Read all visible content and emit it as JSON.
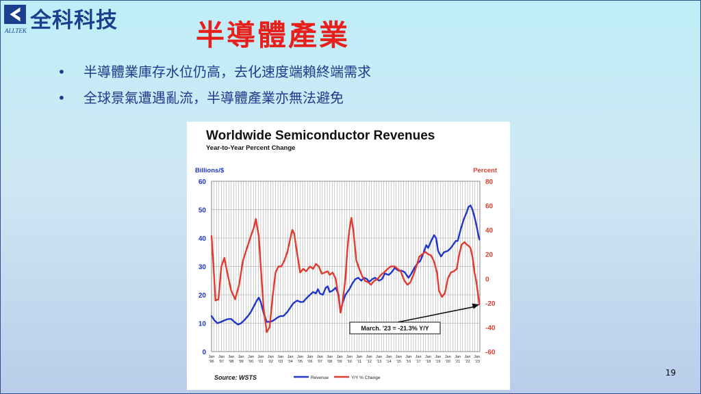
{
  "logo": {
    "name": "全科科技",
    "sub": "ALLTEK"
  },
  "slide": {
    "title": "半導體產業",
    "bullets": [
      "半導體業庫存水位仍高，去化速度端賴終端需求",
      "全球景氣遭遇亂流，半導體產業亦無法避免"
    ],
    "page_number": "19"
  },
  "colors": {
    "revenue": "#1f35c9",
    "yy": "#e03b2e",
    "title": "#e8201c",
    "text": "#1f3b8c",
    "axis_left": "#1f35c9",
    "axis_right": "#e03b2e"
  },
  "chart_data": {
    "type": "line",
    "title": "Worldwide Semiconductor Revenues",
    "subtitle": "Year-to-Year Percent Change",
    "ylabel": "Billions/$",
    "y2label": "Percent",
    "ylim": [
      0,
      60
    ],
    "y2lim": [
      -60,
      80
    ],
    "yticks": [
      "0",
      "10",
      "20",
      "30",
      "40",
      "50",
      "60"
    ],
    "y2ticks": [
      "-60",
      "-40",
      "-20",
      "0",
      "20",
      "40",
      "60",
      "80"
    ],
    "xlim": [
      1996.0,
      2023.25
    ],
    "xticks": [
      {
        "x": 1996,
        "top": "Jan",
        "bottom": "'96"
      },
      {
        "x": 1997,
        "top": "Jan",
        "bottom": "'97"
      },
      {
        "x": 1998,
        "top": "Jan",
        "bottom": "'98"
      },
      {
        "x": 1999,
        "top": "Jan",
        "bottom": "'99"
      },
      {
        "x": 2000,
        "top": "Jan",
        "bottom": "'00"
      },
      {
        "x": 2001,
        "top": "Jan",
        "bottom": "'01"
      },
      {
        "x": 2002,
        "top": "Jan",
        "bottom": "'02"
      },
      {
        "x": 2003,
        "top": "Jan",
        "bottom": "'03"
      },
      {
        "x": 2004,
        "top": "Jan",
        "bottom": "'04"
      },
      {
        "x": 2005,
        "top": "Jan",
        "bottom": "'05"
      },
      {
        "x": 2006,
        "top": "Jan",
        "bottom": "'06"
      },
      {
        "x": 2007,
        "top": "Jan",
        "bottom": "'07"
      },
      {
        "x": 2008,
        "top": "Jan",
        "bottom": "'08"
      },
      {
        "x": 2009,
        "top": "Jan",
        "bottom": "'09"
      },
      {
        "x": 2010,
        "top": "Jan",
        "bottom": "'10"
      },
      {
        "x": 2011,
        "top": "Jan",
        "bottom": "'11"
      },
      {
        "x": 2012,
        "top": "Jan",
        "bottom": "'12"
      },
      {
        "x": 2013,
        "top": "Jan",
        "bottom": "'13"
      },
      {
        "x": 2014,
        "top": "Jan",
        "bottom": "'14"
      },
      {
        "x": 2015,
        "top": "Jan",
        "bottom": "'15"
      },
      {
        "x": 2016,
        "top": "Jan",
        "bottom": "'16"
      },
      {
        "x": 2017,
        "top": "Jan",
        "bottom": "'17"
      },
      {
        "x": 2018,
        "top": "Jan",
        "bottom": "'18"
      },
      {
        "x": 2019,
        "top": "Jan",
        "bottom": "'19"
      },
      {
        "x": 2020,
        "top": "Jan",
        "bottom": "'20"
      },
      {
        "x": 2021,
        "top": "Jan",
        "bottom": "'21"
      },
      {
        "x": 2022,
        "top": "Jan",
        "bottom": "'22"
      },
      {
        "x": 2023,
        "top": "Jan.",
        "bottom": "'23"
      }
    ],
    "series": [
      {
        "name": "Revenue",
        "axis": "left",
        "color": "#1f35c9",
        "points": [
          [
            1996.0,
            12.5
          ],
          [
            1996.3,
            11.0
          ],
          [
            1996.6,
            10.0
          ],
          [
            1997.0,
            10.5
          ],
          [
            1997.3,
            11.0
          ],
          [
            1997.7,
            11.5
          ],
          [
            1998.0,
            11.5
          ],
          [
            1998.3,
            10.5
          ],
          [
            1998.7,
            9.5
          ],
          [
            1999.0,
            10.0
          ],
          [
            1999.3,
            11.0
          ],
          [
            1999.7,
            12.5
          ],
          [
            2000.0,
            14.0
          ],
          [
            2000.3,
            16.0
          ],
          [
            2000.6,
            18.0
          ],
          [
            2000.8,
            19.0
          ],
          [
            2001.0,
            17.5
          ],
          [
            2001.3,
            13.5
          ],
          [
            2001.6,
            10.5
          ],
          [
            2002.0,
            10.5
          ],
          [
            2002.3,
            11.0
          ],
          [
            2002.7,
            12.0
          ],
          [
            2003.0,
            12.5
          ],
          [
            2003.3,
            12.5
          ],
          [
            2003.7,
            14.0
          ],
          [
            2004.0,
            15.5
          ],
          [
            2004.3,
            17.0
          ],
          [
            2004.7,
            18.0
          ],
          [
            2005.0,
            17.5
          ],
          [
            2005.3,
            17.5
          ],
          [
            2005.7,
            19.0
          ],
          [
            2006.0,
            20.0
          ],
          [
            2006.3,
            21.0
          ],
          [
            2006.6,
            20.5
          ],
          [
            2006.8,
            22.0
          ],
          [
            2007.0,
            20.5
          ],
          [
            2007.3,
            20.0
          ],
          [
            2007.6,
            22.5
          ],
          [
            2007.8,
            23.0
          ],
          [
            2008.0,
            21.0
          ],
          [
            2008.3,
            21.5
          ],
          [
            2008.6,
            22.5
          ],
          [
            2008.9,
            20.0
          ],
          [
            2009.1,
            14.0
          ],
          [
            2009.3,
            17.0
          ],
          [
            2009.6,
            20.0
          ],
          [
            2010.0,
            22.0
          ],
          [
            2010.3,
            24.0
          ],
          [
            2010.6,
            25.5
          ],
          [
            2010.9,
            26.0
          ],
          [
            2011.2,
            25.0
          ],
          [
            2011.5,
            26.0
          ],
          [
            2011.8,
            25.5
          ],
          [
            2012.0,
            24.5
          ],
          [
            2012.3,
            25.5
          ],
          [
            2012.6,
            26.0
          ],
          [
            2013.0,
            25.0
          ],
          [
            2013.3,
            25.5
          ],
          [
            2013.6,
            27.5
          ],
          [
            2014.0,
            27.0
          ],
          [
            2014.3,
            28.0
          ],
          [
            2014.6,
            29.5
          ],
          [
            2015.0,
            28.5
          ],
          [
            2015.3,
            28.5
          ],
          [
            2015.6,
            28.0
          ],
          [
            2016.0,
            26.0
          ],
          [
            2016.3,
            27.5
          ],
          [
            2016.6,
            29.5
          ],
          [
            2016.9,
            31.0
          ],
          [
            2017.2,
            32.0
          ],
          [
            2017.5,
            34.5
          ],
          [
            2017.8,
            37.5
          ],
          [
            2018.0,
            36.5
          ],
          [
            2018.3,
            39.0
          ],
          [
            2018.6,
            41.0
          ],
          [
            2018.8,
            40.0
          ],
          [
            2019.0,
            35.5
          ],
          [
            2019.3,
            33.5
          ],
          [
            2019.6,
            35.0
          ],
          [
            2020.0,
            35.5
          ],
          [
            2020.3,
            36.5
          ],
          [
            2020.6,
            38.0
          ],
          [
            2020.8,
            39.0
          ],
          [
            2021.0,
            39.0
          ],
          [
            2021.3,
            43.0
          ],
          [
            2021.6,
            46.5
          ],
          [
            2021.9,
            49.0
          ],
          [
            2022.1,
            51.0
          ],
          [
            2022.3,
            51.5
          ],
          [
            2022.5,
            50.0
          ],
          [
            2022.7,
            47.5
          ],
          [
            2022.9,
            44.5
          ],
          [
            2023.1,
            41.0
          ],
          [
            2023.2,
            39.5
          ]
        ]
      },
      {
        "name": "Y/Y % Change",
        "axis": "right",
        "color": "#e03b2e",
        "points": [
          [
            1996.0,
            35.0
          ],
          [
            1996.2,
            10.0
          ],
          [
            1996.4,
            -18.0
          ],
          [
            1996.7,
            -17.0
          ],
          [
            1997.0,
            10.0
          ],
          [
            1997.3,
            17.0
          ],
          [
            1997.6,
            5.0
          ],
          [
            1998.0,
            -10.0
          ],
          [
            1998.4,
            -17.0
          ],
          [
            1998.8,
            -5.0
          ],
          [
            1999.2,
            15.0
          ],
          [
            1999.6,
            25.0
          ],
          [
            2000.0,
            35.0
          ],
          [
            2000.3,
            42.0
          ],
          [
            2000.5,
            49.0
          ],
          [
            2000.8,
            35.0
          ],
          [
            2001.0,
            10.0
          ],
          [
            2001.3,
            -25.0
          ],
          [
            2001.6,
            -44.0
          ],
          [
            2001.9,
            -40.0
          ],
          [
            2002.2,
            -15.0
          ],
          [
            2002.5,
            5.0
          ],
          [
            2002.8,
            10.0
          ],
          [
            2003.1,
            10.0
          ],
          [
            2003.4,
            15.0
          ],
          [
            2003.7,
            22.0
          ],
          [
            2004.0,
            33.0
          ],
          [
            2004.2,
            40.0
          ],
          [
            2004.4,
            37.0
          ],
          [
            2004.7,
            20.0
          ],
          [
            2005.0,
            5.0
          ],
          [
            2005.3,
            8.0
          ],
          [
            2005.6,
            6.0
          ],
          [
            2006.0,
            10.0
          ],
          [
            2006.3,
            8.0
          ],
          [
            2006.6,
            12.0
          ],
          [
            2006.9,
            10.0
          ],
          [
            2007.2,
            4.0
          ],
          [
            2007.5,
            5.0
          ],
          [
            2007.8,
            6.0
          ],
          [
            2008.0,
            3.0
          ],
          [
            2008.3,
            5.0
          ],
          [
            2008.6,
            0.0
          ],
          [
            2008.9,
            -15.0
          ],
          [
            2009.1,
            -28.0
          ],
          [
            2009.3,
            -20.0
          ],
          [
            2009.6,
            0.0
          ],
          [
            2009.8,
            25.0
          ],
          [
            2010.0,
            40.0
          ],
          [
            2010.2,
            50.0
          ],
          [
            2010.4,
            40.0
          ],
          [
            2010.7,
            15.0
          ],
          [
            2011.0,
            8.0
          ],
          [
            2011.3,
            2.0
          ],
          [
            2011.6,
            -2.0
          ],
          [
            2011.9,
            -3.0
          ],
          [
            2012.2,
            -5.0
          ],
          [
            2012.5,
            -2.0
          ],
          [
            2012.9,
            0.0
          ],
          [
            2013.2,
            3.0
          ],
          [
            2013.5,
            5.0
          ],
          [
            2013.9,
            8.0
          ],
          [
            2014.2,
            10.0
          ],
          [
            2014.6,
            10.0
          ],
          [
            2014.9,
            8.0
          ],
          [
            2015.2,
            6.0
          ],
          [
            2015.6,
            -2.0
          ],
          [
            2015.9,
            -5.0
          ],
          [
            2016.2,
            -3.0
          ],
          [
            2016.5,
            3.0
          ],
          [
            2016.8,
            10.0
          ],
          [
            2017.1,
            18.0
          ],
          [
            2017.4,
            20.0
          ],
          [
            2017.7,
            22.0
          ],
          [
            2018.0,
            20.0
          ],
          [
            2018.3,
            19.0
          ],
          [
            2018.6,
            14.0
          ],
          [
            2018.9,
            5.0
          ],
          [
            2019.1,
            -10.0
          ],
          [
            2019.4,
            -15.0
          ],
          [
            2019.7,
            -12.0
          ],
          [
            2020.0,
            0.0
          ],
          [
            2020.3,
            5.0
          ],
          [
            2020.6,
            6.0
          ],
          [
            2020.9,
            8.0
          ],
          [
            2021.1,
            18.0
          ],
          [
            2021.4,
            28.0
          ],
          [
            2021.7,
            30.0
          ],
          [
            2021.9,
            28.0
          ],
          [
            2022.1,
            27.0
          ],
          [
            2022.3,
            25.0
          ],
          [
            2022.5,
            18.0
          ],
          [
            2022.7,
            5.0
          ],
          [
            2022.9,
            -3.0
          ],
          [
            2023.1,
            -15.0
          ],
          [
            2023.2,
            -21.3
          ]
        ]
      }
    ],
    "legend": [
      {
        "label": "Revenue",
        "color": "#1f35c9"
      },
      {
        "label": "Y/Y % Change",
        "color": "#e03b2e"
      }
    ],
    "legend_position": "bottom",
    "source": "Source: WSTS",
    "annotation": {
      "text": "March. '23 = -21.3% Y/Y",
      "x": 2023.2,
      "y": -21.3
    }
  }
}
